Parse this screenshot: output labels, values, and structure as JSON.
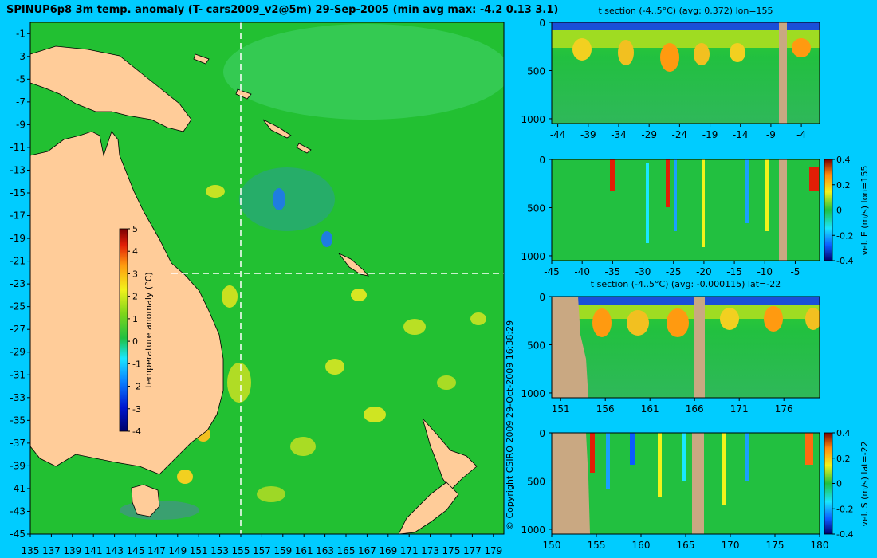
{
  "colors": {
    "background": "#00ccff",
    "land": "#ffcc99",
    "section_land": "#c9a882",
    "ocean_base": "#22c032",
    "colorbar": [
      "#00006a",
      "#0016d0",
      "#0a7cff",
      "#19e7ff",
      "#20c040",
      "#7ed51a",
      "#f2f21b",
      "#ff9a10",
      "#e21e06",
      "#7a0000"
    ]
  },
  "chart_data": [
    {
      "type": "heatmap",
      "name": "main-map",
      "title": "SPINUP6p8 3m temp. anomaly (T- cars2009_v2@5m) 29-Sep-2005 (min avg max: -4.2 0.13 3.1)",
      "x_ticks": [
        "135",
        "137",
        "139",
        "141",
        "143",
        "145",
        "147",
        "149",
        "151",
        "153",
        "155",
        "157",
        "159",
        "161",
        "163",
        "165",
        "167",
        "169",
        "171",
        "173",
        "175",
        "177",
        "179"
      ],
      "y_ticks": [
        "-1",
        "-3",
        "-5",
        "-7",
        "-9",
        "-11",
        "-13",
        "-15",
        "-17",
        "-19",
        "-21",
        "-23",
        "-25",
        "-27",
        "-29",
        "-31",
        "-33",
        "-35",
        "-37",
        "-39",
        "-41",
        "-43",
        "-45"
      ],
      "xlim": [
        135,
        180
      ],
      "ylim": [
        -45,
        0
      ],
      "section_lines": {
        "lon": 155,
        "lat": -22
      },
      "colorbar": {
        "label": "temperature anomaly (°C)",
        "ticks": [
          "5",
          "4",
          "3",
          "2",
          "1",
          "0",
          "-1",
          "-2",
          "-3",
          "-4"
        ],
        "range": [
          -4,
          5
        ]
      },
      "copyright": "© Copyright CSIRO 2009   29-Oct-2009 16:38:29"
    },
    {
      "type": "heatmap",
      "name": "t-section-lon",
      "title": "t section (-4..5°C) (avg: 0.372) lon=155",
      "x_ticks": [
        "-44",
        "-39",
        "-34",
        "-29",
        "-24",
        "-19",
        "-14",
        "-9",
        "-4"
      ],
      "xlim": [
        -45,
        -1
      ],
      "y_ticks": [
        "0",
        "500",
        "1000"
      ],
      "ylim": [
        1050,
        0
      ]
    },
    {
      "type": "heatmap",
      "name": "vel-e-section",
      "x_ticks": [
        "-45",
        "-40",
        "-35",
        "-30",
        "-25",
        "-20",
        "-15",
        "-10",
        "-5"
      ],
      "xlim": [
        -45,
        -1
      ],
      "y_ticks": [
        "0",
        "500",
        "1000"
      ],
      "ylim": [
        1050,
        0
      ],
      "colorbar": {
        "label": "vel. E (m/s) lon=155",
        "ticks": [
          "0.4",
          "0.2",
          "0",
          "-0.2",
          "-0.4"
        ],
        "range": [
          -0.4,
          0.4
        ]
      }
    },
    {
      "type": "heatmap",
      "name": "t-section-lat",
      "title": "t section (-4..5°C) (avg: -0.000115) lat=-22",
      "x_ticks": [
        "151",
        "156",
        "161",
        "166",
        "171",
        "176"
      ],
      "xlim": [
        150,
        180
      ],
      "y_ticks": [
        "0",
        "500",
        "1000"
      ],
      "ylim": [
        1050,
        0
      ]
    },
    {
      "type": "heatmap",
      "name": "vel-s-section",
      "x_ticks": [
        "150",
        "155",
        "160",
        "165",
        "170",
        "175",
        "180"
      ],
      "xlim": [
        150,
        180
      ],
      "y_ticks": [
        "0",
        "500",
        "1000"
      ],
      "ylim": [
        1050,
        0
      ],
      "colorbar": {
        "label": "vel. S (m/s) lat=-22",
        "ticks": [
          "0.4",
          "0.2",
          "0",
          "-0.2",
          "-0.4"
        ],
        "range": [
          -0.4,
          0.4
        ]
      }
    }
  ]
}
